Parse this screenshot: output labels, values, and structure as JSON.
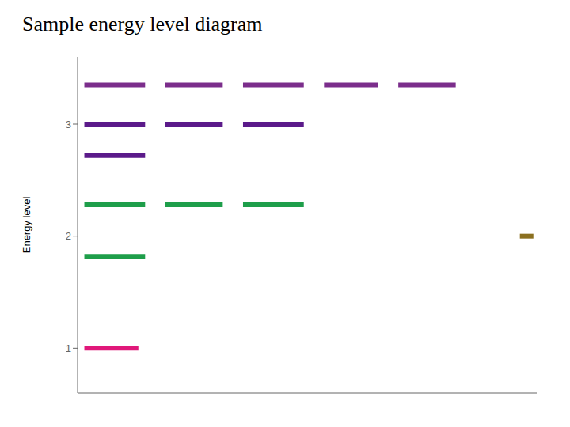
{
  "chart_data": {
    "type": "line",
    "title": "Sample energy level diagram",
    "y_label": "Energy level",
    "xlim": [
      0,
      6.8
    ],
    "ylim": [
      0.6,
      3.6
    ],
    "yticks": [
      1,
      2,
      3
    ],
    "tick_labels": "y",
    "grid": false,
    "series": [
      {
        "color": "#7b2d8b",
        "x": [
          0.1,
          1.0
        ],
        "values": [
          3.35,
          3.35
        ]
      },
      {
        "color": "#7b2d8b",
        "x": [
          1.3,
          2.15
        ],
        "values": [
          3.35,
          3.35
        ]
      },
      {
        "color": "#7b2d8b",
        "x": [
          2.45,
          3.35
        ],
        "values": [
          3.35,
          3.35
        ]
      },
      {
        "color": "#7b2d8b",
        "x": [
          3.65,
          4.45
        ],
        "values": [
          3.35,
          3.35
        ]
      },
      {
        "color": "#7b2d8b",
        "x": [
          4.75,
          5.6
        ],
        "values": [
          3.35,
          3.35
        ]
      },
      {
        "color": "#5b1a8a",
        "x": [
          0.1,
          1.0
        ],
        "values": [
          3.0,
          3.0
        ]
      },
      {
        "color": "#5b1a8a",
        "x": [
          1.3,
          2.15
        ],
        "values": [
          3.0,
          3.0
        ]
      },
      {
        "color": "#5b1a8a",
        "x": [
          2.45,
          3.35
        ],
        "values": [
          3.0,
          3.0
        ]
      },
      {
        "color": "#5b1a8a",
        "x": [
          0.1,
          1.0
        ],
        "values": [
          2.72,
          2.72
        ]
      },
      {
        "color": "#1e9e4a",
        "x": [
          0.1,
          1.0
        ],
        "values": [
          2.28,
          2.28
        ]
      },
      {
        "color": "#1e9e4a",
        "x": [
          1.3,
          2.15
        ],
        "values": [
          2.28,
          2.28
        ]
      },
      {
        "color": "#1e9e4a",
        "x": [
          2.45,
          3.35
        ],
        "values": [
          2.28,
          2.28
        ]
      },
      {
        "color": "#1e9e4a",
        "x": [
          0.1,
          1.0
        ],
        "values": [
          1.82,
          1.82
        ]
      },
      {
        "color": "#e0187a",
        "x": [
          0.1,
          0.9
        ],
        "values": [
          1.0,
          1.0
        ]
      },
      {
        "color": "#8b7020",
        "x": [
          6.55,
          6.75
        ],
        "values": [
          2.0,
          2.0
        ]
      }
    ]
  }
}
